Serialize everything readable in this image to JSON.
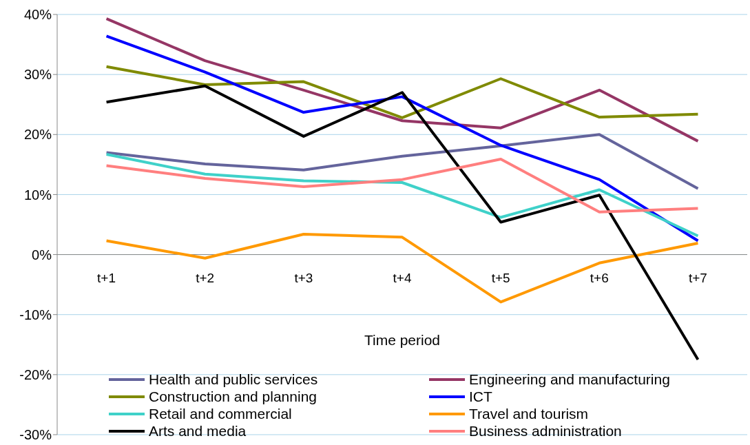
{
  "chart_data": {
    "type": "line",
    "xlabel": "Time period",
    "categories": [
      "t+1",
      "t+2",
      "t+3",
      "t+4",
      "t+5",
      "t+6",
      "t+7"
    ],
    "ylim": [
      -30,
      40
    ],
    "yticks": [
      {
        "value": -30,
        "label": "-30%"
      },
      {
        "value": -20,
        "label": "-20%"
      },
      {
        "value": -10,
        "label": "-10%"
      },
      {
        "value": 0,
        "label": "0%"
      },
      {
        "value": 10,
        "label": "10%"
      },
      {
        "value": 20,
        "label": "20%"
      },
      {
        "value": 30,
        "label": "30%"
      },
      {
        "value": 40,
        "label": "40%"
      }
    ],
    "grid": "y",
    "legend": "bottom",
    "marker": "none",
    "line_style": "solid",
    "series": [
      {
        "name": "Health and public services",
        "color": "#64649c",
        "values": [
          17.0,
          15.1,
          14.1,
          16.4,
          18.1,
          20.0,
          11.0
        ]
      },
      {
        "name": "Engineering and manufacturing",
        "color": "#953665",
        "values": [
          39.3,
          32.3,
          27.4,
          22.3,
          21.1,
          27.4,
          18.9
        ]
      },
      {
        "name": "Construction and planning",
        "color": "#7f8a00",
        "values": [
          31.3,
          28.3,
          28.8,
          22.8,
          29.3,
          22.9,
          23.4
        ]
      },
      {
        "name": "ICT",
        "color": "#0000ff",
        "values": [
          36.4,
          30.4,
          23.7,
          26.3,
          18.2,
          12.5,
          2.3
        ]
      },
      {
        "name": "Retail and commercial",
        "color": "#3fd1c9",
        "values": [
          16.7,
          13.4,
          12.3,
          12.0,
          6.2,
          10.8,
          3.1
        ]
      },
      {
        "name": "Travel and tourism",
        "color": "#ff9900",
        "values": [
          2.3,
          -0.6,
          3.4,
          2.9,
          -7.9,
          -1.4,
          1.9
        ]
      },
      {
        "name": "Arts and media",
        "color": "#000000",
        "values": [
          25.4,
          28.1,
          19.7,
          27.0,
          5.4,
          9.9,
          -17.5
        ]
      },
      {
        "name": "Business administration",
        "color": "#ff7f7f",
        "values": [
          14.8,
          12.7,
          11.3,
          12.5,
          15.9,
          7.1,
          7.7
        ]
      }
    ]
  }
}
